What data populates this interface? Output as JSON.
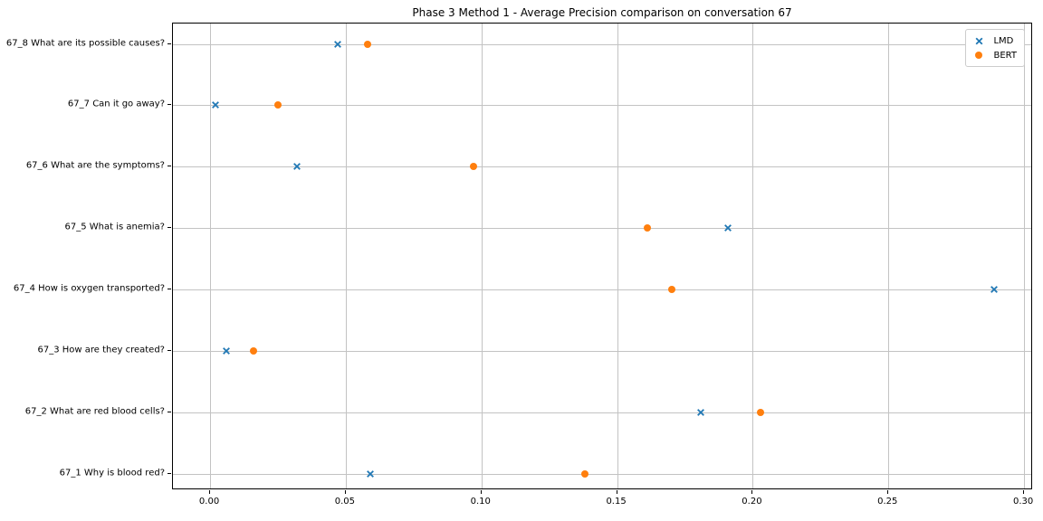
{
  "chart_data": {
    "type": "scatter",
    "title": "Phase 3 Method 1 - Average Precision comparison on conversation 67",
    "orientation": "horizontal-categories",
    "xlabel": "",
    "ylabel": "",
    "grid": true,
    "xlim": [
      -0.0137,
      0.3033
    ],
    "x_ticks": [
      0.0,
      0.05,
      0.1,
      0.15,
      0.2,
      0.25,
      0.3
    ],
    "x_tick_labels": [
      "0.00",
      "0.05",
      "0.10",
      "0.15",
      "0.20",
      "0.25",
      "0.30"
    ],
    "categories_top_to_bottom": [
      "67_8 What are its possible causes?",
      "67_7 Can it go away?",
      "67_6 What are the symptoms?",
      "67_5 What is anemia?",
      "67_4 How is oxygen transported?",
      "67_3 How are they created?",
      "67_2 What are red blood cells?",
      "67_1 Why is blood red?"
    ],
    "series": [
      {
        "name": "LMD",
        "marker": "x",
        "color": "#1f77b4",
        "values_top_to_bottom": [
          0.047,
          0.002,
          0.032,
          0.191,
          0.289,
          0.006,
          0.181,
          0.059
        ]
      },
      {
        "name": "BERT",
        "marker": "circle",
        "color": "#ff7f0e",
        "values_top_to_bottom": [
          0.058,
          0.025,
          0.097,
          0.161,
          0.17,
          0.016,
          0.203,
          0.138
        ]
      }
    ],
    "legend": {
      "position": "upper-right",
      "entries": [
        "LMD",
        "BERT"
      ]
    },
    "colors": {
      "grid": "#c3c3c3",
      "spine": "#000000",
      "background": "#ffffff"
    }
  }
}
